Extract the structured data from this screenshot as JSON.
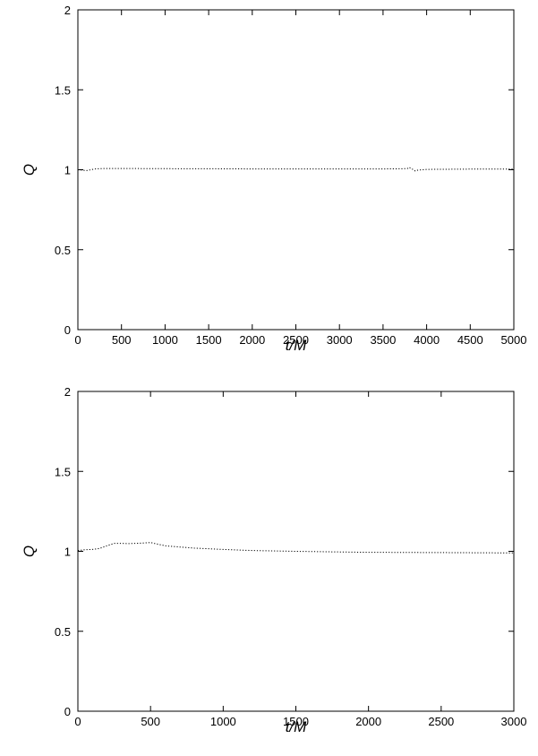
{
  "chart_data": [
    {
      "type": "line",
      "xlabel": "t/M",
      "ylabel": "Q",
      "xlim": [
        0,
        5000
      ],
      "ylim": [
        0,
        2
      ],
      "xticks": [
        "0",
        "500",
        "1000",
        "1500",
        "2000",
        "2500",
        "3000",
        "3500",
        "4000",
        "4500",
        "5000"
      ],
      "yticks": [
        "0",
        "0.5",
        "1",
        "1.5",
        "2"
      ],
      "grid": false,
      "line_style": "dotted",
      "series": [
        {
          "x": [
            0,
            100,
            150,
            200,
            250,
            300,
            500,
            1000,
            1500,
            2000,
            2500,
            3000,
            3500,
            3700,
            3780,
            3800,
            3820,
            3850,
            3870,
            3900,
            4000,
            4500,
            5000
          ],
          "values": [
            1.0,
            0.995,
            1.0,
            1.005,
            1.007,
            1.008,
            1.008,
            1.007,
            1.006,
            1.005,
            1.005,
            1.005,
            1.005,
            1.006,
            1.008,
            1.015,
            1.008,
            1.0,
            0.992,
            0.998,
            1.002,
            1.004,
            1.004
          ]
        }
      ]
    },
    {
      "type": "line",
      "xlabel": "t/M",
      "ylabel": "Q",
      "xlim": [
        0,
        3000
      ],
      "ylim": [
        0,
        2
      ],
      "xticks": [
        "0",
        "500",
        "1000",
        "1500",
        "2000",
        "2500",
        "3000"
      ],
      "yticks": [
        "0",
        "0.5",
        "1",
        "1.5",
        "2"
      ],
      "grid": false,
      "line_style": "dotted",
      "series": [
        {
          "x": [
            0,
            50,
            100,
            150,
            200,
            250,
            300,
            350,
            400,
            450,
            500,
            550,
            600,
            700,
            800,
            1000,
            1200,
            1500,
            1800,
            2000,
            2500,
            3000
          ],
          "values": [
            1.005,
            1.01,
            1.012,
            1.018,
            1.035,
            1.05,
            1.05,
            1.048,
            1.05,
            1.052,
            1.055,
            1.045,
            1.035,
            1.027,
            1.02,
            1.012,
            1.005,
            1.0,
            0.996,
            0.994,
            0.992,
            0.99
          ]
        }
      ]
    }
  ]
}
